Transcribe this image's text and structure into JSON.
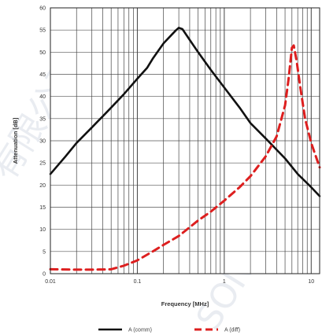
{
  "chart_data": {
    "type": "line",
    "xlabel": "Frequency [MHz]",
    "ylabel": "Attenuation [dB]",
    "xscale": "log",
    "xlim": [
      0.01,
      12.5
    ],
    "ylim": [
      0,
      60
    ],
    "grid": true,
    "legend_placement": "bottom",
    "x_ticks": [
      {
        "value": 0.01,
        "label": "0.01"
      },
      {
        "value": 0.1,
        "label": "0.1"
      },
      {
        "value": 1,
        "label": "1"
      },
      {
        "value": 10,
        "label": "10"
      }
    ],
    "y_ticks": [
      0,
      5,
      10,
      15,
      20,
      25,
      30,
      35,
      40,
      45,
      50,
      55,
      60
    ],
    "series": [
      {
        "name": "A (comm)",
        "color": "#111111",
        "style": "solid",
        "points": [
          [
            0.01,
            22.5
          ],
          [
            0.015,
            26.5
          ],
          [
            0.02,
            29.5
          ],
          [
            0.03,
            33
          ],
          [
            0.05,
            37.5
          ],
          [
            0.07,
            40.5
          ],
          [
            0.1,
            44
          ],
          [
            0.13,
            46.5
          ],
          [
            0.15,
            48.5
          ],
          [
            0.2,
            52
          ],
          [
            0.25,
            54
          ],
          [
            0.28,
            55
          ],
          [
            0.3,
            55.5
          ],
          [
            0.33,
            55.2
          ],
          [
            0.4,
            52.8
          ],
          [
            0.5,
            50
          ],
          [
            0.7,
            46
          ],
          [
            1,
            42
          ],
          [
            1.5,
            37.5
          ],
          [
            2,
            34
          ],
          [
            3,
            30.5
          ],
          [
            5,
            26
          ],
          [
            7,
            22.5
          ],
          [
            10,
            19.5
          ],
          [
            12.5,
            17.5
          ]
        ]
      },
      {
        "name": "A (diff)",
        "color": "#dd1f1f",
        "style": "dashed",
        "points": [
          [
            0.01,
            1
          ],
          [
            0.02,
            0.9
          ],
          [
            0.03,
            0.9
          ],
          [
            0.05,
            1
          ],
          [
            0.07,
            1.8
          ],
          [
            0.1,
            3
          ],
          [
            0.15,
            5
          ],
          [
            0.2,
            6.5
          ],
          [
            0.3,
            8.5
          ],
          [
            0.5,
            12
          ],
          [
            0.7,
            14
          ],
          [
            1,
            16.5
          ],
          [
            1.5,
            19.5
          ],
          [
            2,
            22
          ],
          [
            3,
            26.5
          ],
          [
            4,
            31
          ],
          [
            5,
            38
          ],
          [
            5.5,
            44
          ],
          [
            6,
            51
          ],
          [
            6.3,
            51.5
          ],
          [
            6.8,
            48
          ],
          [
            7.5,
            42
          ],
          [
            8.5,
            35
          ],
          [
            10,
            29.5
          ],
          [
            12.5,
            24
          ]
        ]
      }
    ]
  }
}
